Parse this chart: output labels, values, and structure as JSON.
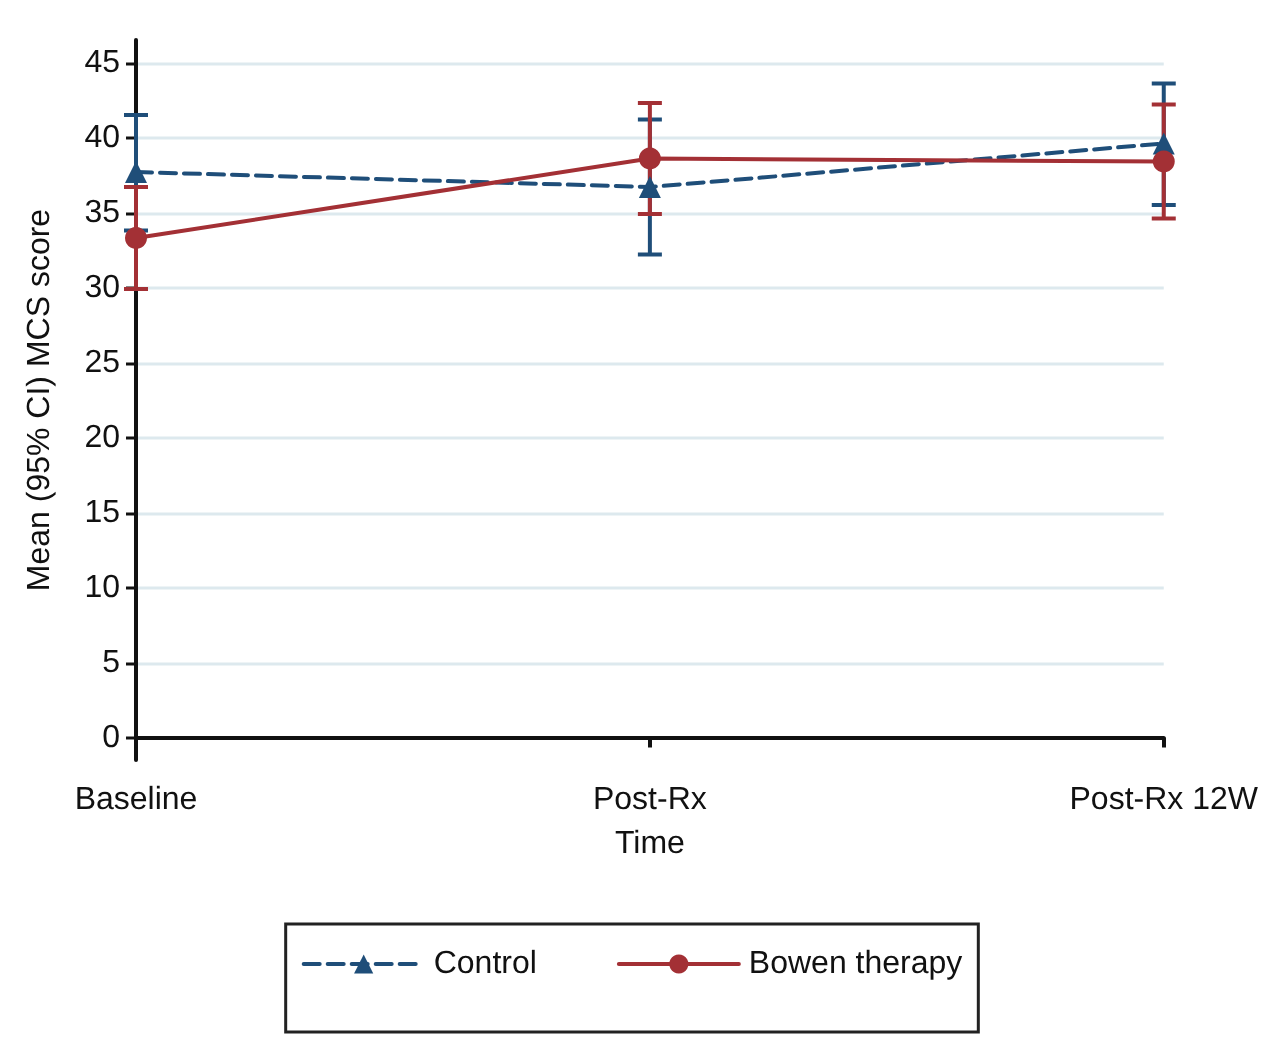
{
  "chart_data": {
    "type": "line",
    "xlabel": "Time",
    "ylabel": "Mean (95% CI) MCS score",
    "categories": [
      "Baseline",
      "Post-Rx",
      "Post-Rx 12W"
    ],
    "series": [
      {
        "name": "Control",
        "color": "#1f4e79",
        "values": [
          37.7,
          36.7,
          39.6
        ],
        "errors": [
          [
            33.8,
            41.5
          ],
          [
            32.2,
            41.2
          ],
          [
            35.5,
            43.6
          ]
        ],
        "marker": "triangle",
        "line_style": "dashed"
      },
      {
        "name": "Bowen therapy",
        "color": "#a33035",
        "values": [
          33.3,
          38.6,
          38.4
        ],
        "errors": [
          [
            29.9,
            36.7
          ],
          [
            34.9,
            42.3
          ],
          [
            34.6,
            42.2
          ]
        ],
        "marker": "circle",
        "line_style": "solid"
      }
    ],
    "ylim": [
      -1.5,
      46.5
    ],
    "yticks": [
      0,
      5,
      10,
      15,
      20,
      25,
      30,
      35,
      40,
      45
    ],
    "grid": "y",
    "legend": "bottom"
  }
}
